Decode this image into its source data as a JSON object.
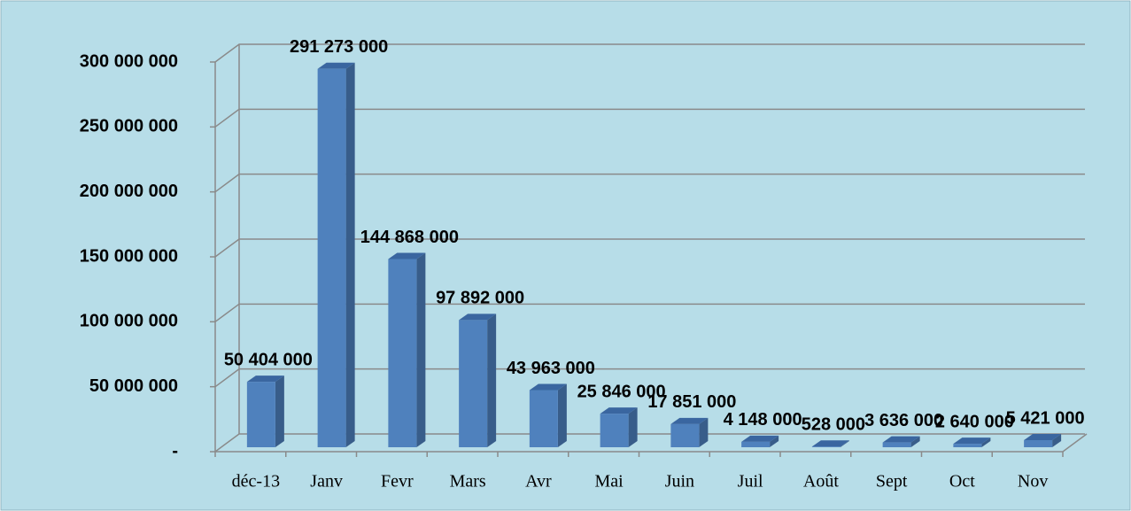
{
  "chart_data": {
    "type": "bar3d",
    "categories": [
      "déc-13",
      "Janv",
      "Fevr",
      "Mars",
      "Avr",
      "Mai",
      "Juin",
      "Juil",
      "Août",
      "Sept",
      "Oct",
      "Nov"
    ],
    "values": [
      50404000,
      291273000,
      144868000,
      97892000,
      43963000,
      25846000,
      17851000,
      4148000,
      528000,
      3636000,
      2640000,
      5421000
    ],
    "value_labels": [
      "50 404 000",
      "291 273 000",
      "144 868 000",
      "97 892 000",
      "43 963 000",
      "25 846 000",
      "17 851 000",
      "4 148 000",
      "528 000",
      "3 636 000",
      "2 640 000",
      "5 421 000"
    ],
    "color": "#4f81bd",
    "ylim": [
      0,
      300000000
    ],
    "yticks": [
      {
        "value": 0,
        "label": "-"
      },
      {
        "value": 50000000,
        "label": "50 000 000"
      },
      {
        "value": 100000000,
        "label": "100 000 000"
      },
      {
        "value": 150000000,
        "label": "150 000 000"
      },
      {
        "value": 200000000,
        "label": "200 000 000"
      },
      {
        "value": 250000000,
        "label": "250 000 000"
      },
      {
        "value": 300000000,
        "label": "300 000 000"
      }
    ],
    "grid": true
  }
}
